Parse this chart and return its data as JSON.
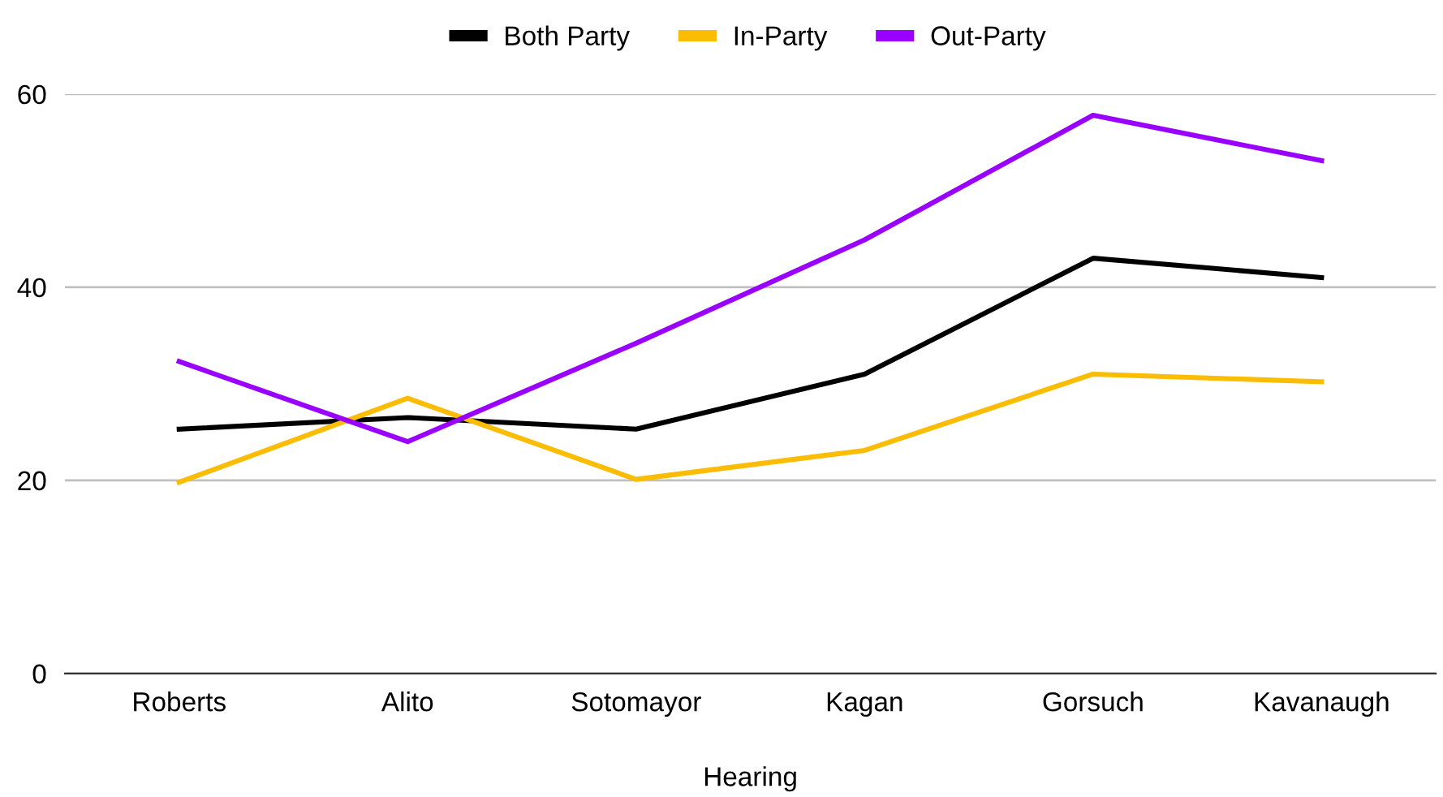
{
  "chart_data": {
    "type": "line",
    "xlabel": "Hearing",
    "categories": [
      "Roberts",
      "Alito",
      "Sotomayor",
      "Kagan",
      "Gorsuch",
      "Kavanaugh"
    ],
    "series": [
      {
        "name": "Both Party",
        "color": "#000000",
        "values": [
          25.3,
          26.5,
          25.3,
          31.0,
          43.0,
          41.0
        ]
      },
      {
        "name": "In-Party",
        "color": "#fbbc04",
        "values": [
          19.8,
          28.5,
          20.1,
          23.1,
          31.0,
          30.2
        ]
      },
      {
        "name": "Out-Party",
        "color": "#9900ff",
        "values": [
          32.3,
          24.0,
          34.2,
          44.9,
          57.8,
          53.1
        ]
      }
    ],
    "ylim": [
      0,
      60
    ],
    "yticks": [
      0,
      20,
      40,
      60
    ],
    "grid": "y",
    "legend": "top",
    "marker": "none",
    "line_style": "solid"
  }
}
